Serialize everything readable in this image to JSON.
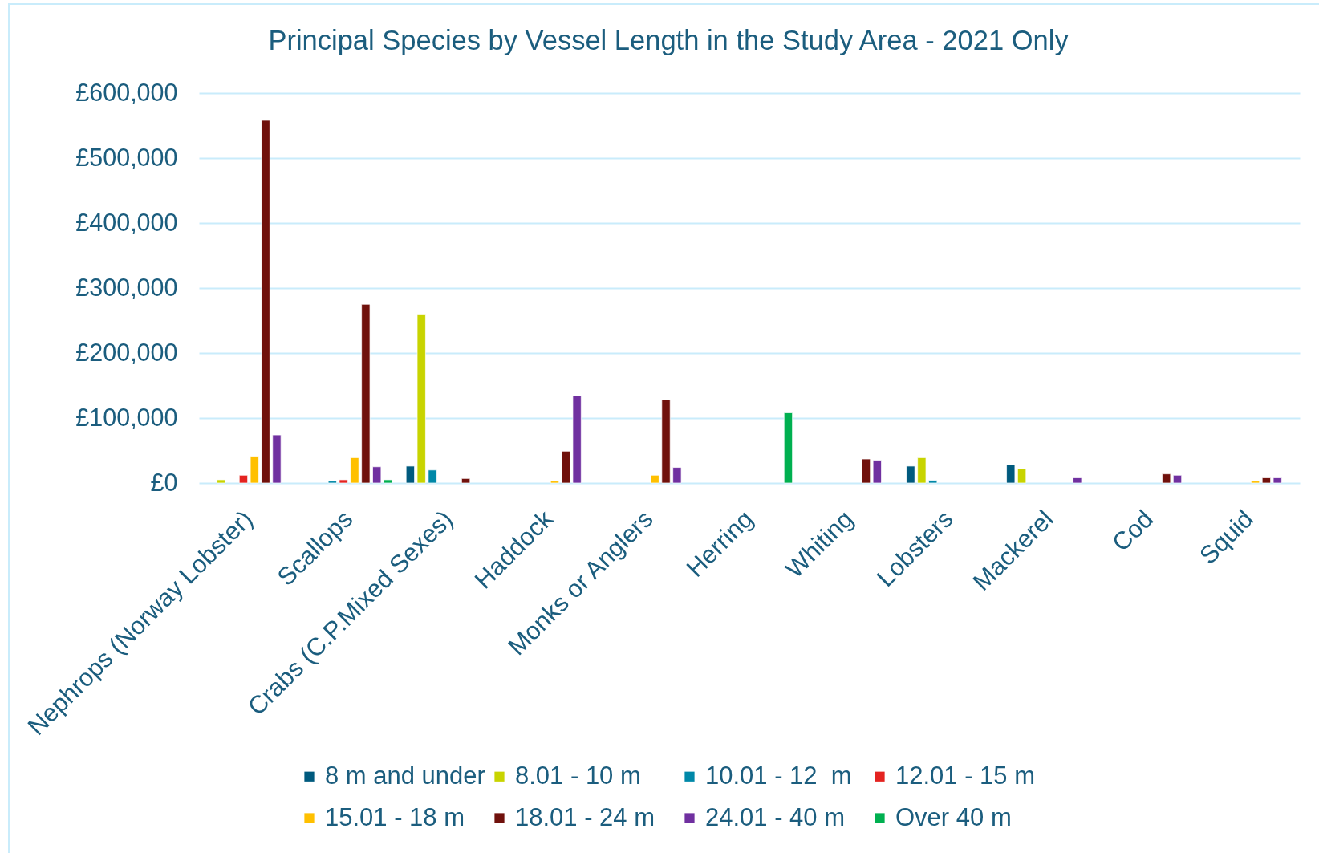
{
  "chart_data": {
    "type": "bar",
    "title": "Principal Species by Vessel Length in the Study Area - 2021 Only",
    "categories": [
      "Nephrops (Norway Lobster)",
      "Scallops",
      "Crabs (C.P.Mixed Sexes)",
      "Haddock",
      "Monks or Anglers",
      "Herring",
      "Whiting",
      "Lobsters",
      "Mackerel",
      "Cod",
      "Squid"
    ],
    "series": [
      {
        "name": "8 m and under",
        "color": "#005a7e",
        "values": [
          null,
          null,
          26000,
          null,
          null,
          null,
          null,
          26000,
          28000,
          null,
          null
        ]
      },
      {
        "name": "8.01 - 10 m",
        "color": "#c8d400",
        "values": [
          5000,
          null,
          260000,
          null,
          null,
          null,
          null,
          39000,
          22000,
          null,
          null
        ]
      },
      {
        "name": "10.01 - 12  m",
        "color": "#0088a8",
        "values": [
          null,
          3000,
          20000,
          null,
          null,
          null,
          null,
          4000,
          null,
          null,
          null
        ]
      },
      {
        "name": "12.01 - 15 m",
        "color": "#e42320",
        "values": [
          12000,
          5000,
          null,
          null,
          null,
          null,
          null,
          null,
          null,
          null,
          null
        ]
      },
      {
        "name": "15.01 - 18 m",
        "color": "#ffc000",
        "values": [
          41000,
          39000,
          null,
          3000,
          12000,
          null,
          null,
          null,
          null,
          null,
          3000
        ]
      },
      {
        "name": "18.01 - 24 m",
        "color": "#70110c",
        "values": [
          558000,
          275000,
          7000,
          49000,
          128000,
          null,
          37000,
          null,
          null,
          14000,
          8000
        ]
      },
      {
        "name": "24.01 - 40 m",
        "color": "#7030a0",
        "values": [
          74000,
          25000,
          null,
          134000,
          24000,
          null,
          35000,
          null,
          8000,
          12000,
          8000
        ]
      },
      {
        "name": "Over 40 m",
        "color": "#00b050",
        "values": [
          null,
          5000,
          null,
          null,
          null,
          108000,
          null,
          null,
          null,
          null,
          null
        ]
      }
    ],
    "ylim": [
      0,
      600000
    ],
    "yticks": [
      {
        "value": 0,
        "label": "£0"
      },
      {
        "value": 100000,
        "label": "£100,000"
      },
      {
        "value": 200000,
        "label": "£200,000"
      },
      {
        "value": 300000,
        "label": "£300,000"
      },
      {
        "value": 400000,
        "label": "£400,000"
      },
      {
        "value": 500000,
        "label": "£500,000"
      },
      {
        "value": 600000,
        "label": "£600,000"
      }
    ],
    "grid": "y",
    "legend": "bottom"
  }
}
